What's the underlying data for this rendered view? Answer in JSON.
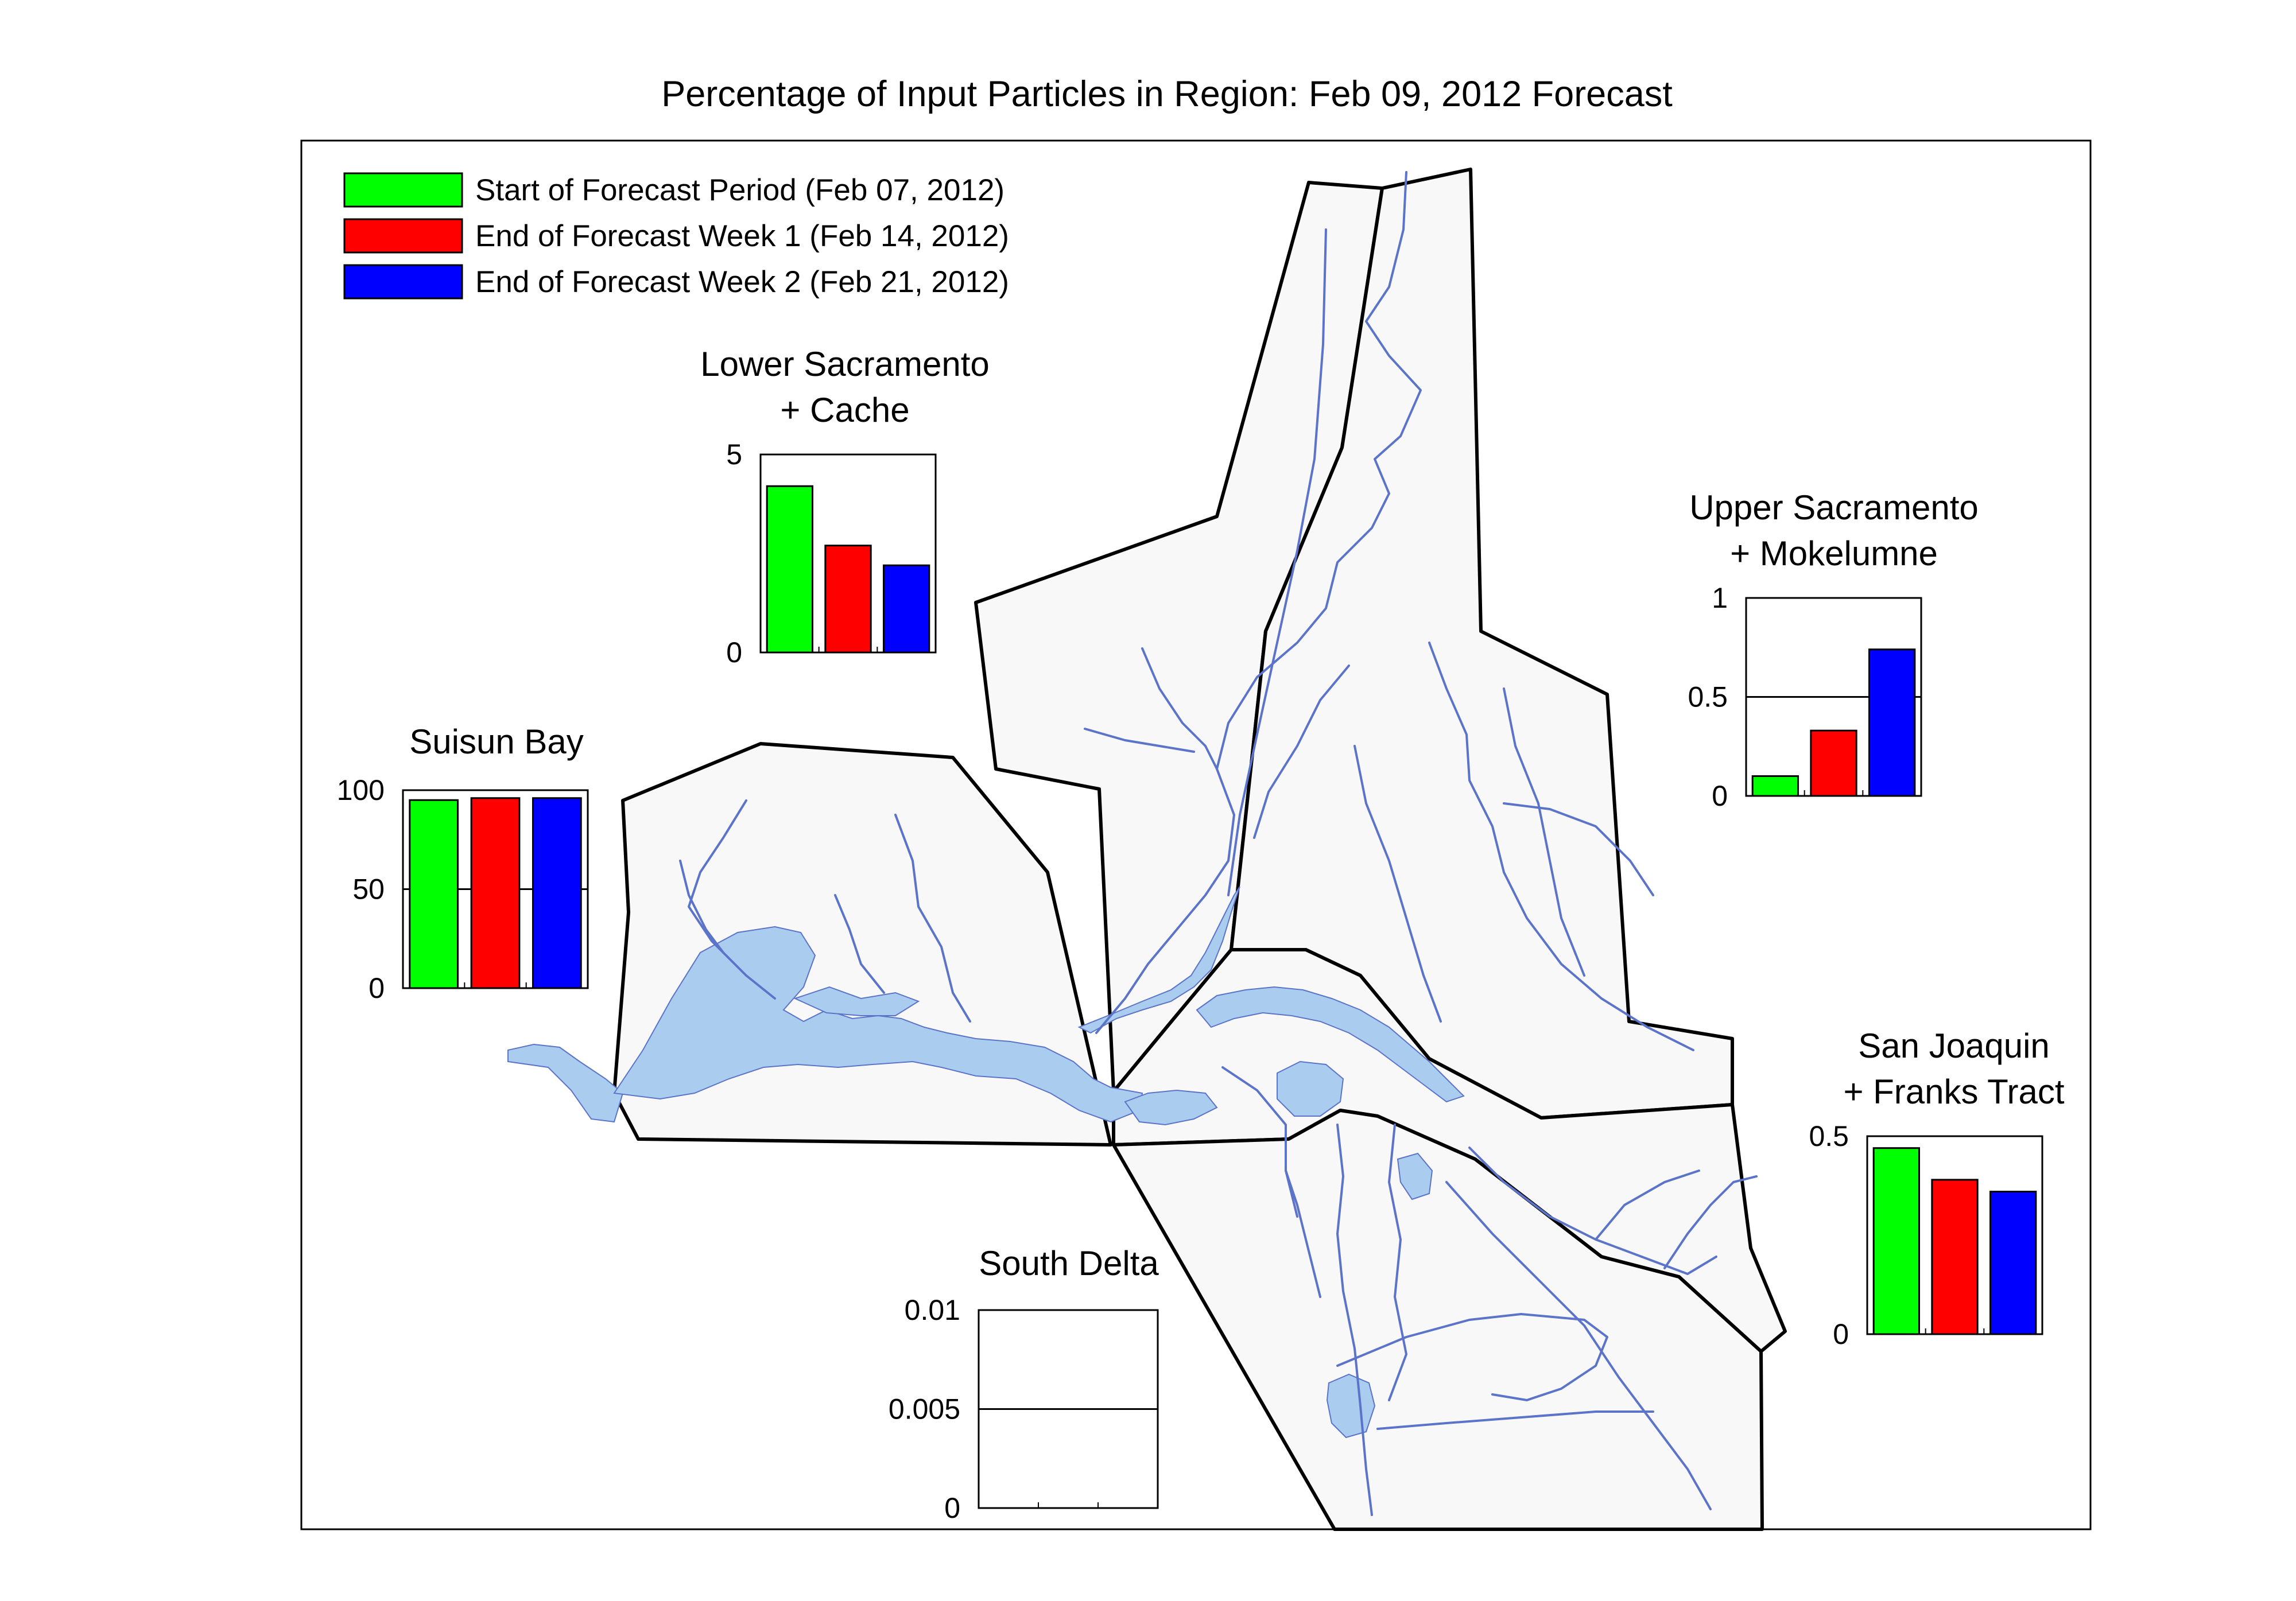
{
  "figure": {
    "title": "Percentage of Input Particles in Region: Feb 09, 2012 Forecast"
  },
  "legend": {
    "placement": "top-left",
    "entries": [
      {
        "label": "Start of Forecast Period (Feb 07, 2012)",
        "color": "#00ff00"
      },
      {
        "label": "End of Forecast Week 1 (Feb 14, 2012)",
        "color": "#ff0000"
      },
      {
        "label": "End of Forecast Week 2 (Feb 21, 2012)",
        "color": "#0000ff"
      }
    ]
  },
  "map": {
    "water_color": "#a9ccef",
    "channel_color": "#5b73c8",
    "region_fill": "#f8f8f8",
    "region_border_color": "#000000"
  },
  "chart_data": [
    {
      "type": "bar",
      "title_lines": [
        "Lower Sacramento",
        "+ Cache"
      ],
      "series_names": [
        "Start of Forecast Period (Feb 07, 2012)",
        "End of Forecast Week 1 (Feb 14, 2012)",
        "End of Forecast Week 2 (Feb 21, 2012)"
      ],
      "values": [
        4.2,
        2.7,
        2.2
      ],
      "ylim": [
        0,
        5
      ],
      "yticks": [
        "0",
        "5"
      ],
      "gridlines": []
    },
    {
      "type": "bar",
      "title_lines": [
        "Upper Sacramento",
        "+ Mokelumne"
      ],
      "series_names": [
        "Start of Forecast Period (Feb 07, 2012)",
        "End of Forecast Week 1 (Feb 14, 2012)",
        "End of Forecast Week 2 (Feb 21, 2012)"
      ],
      "values": [
        0.1,
        0.33,
        0.74
      ],
      "ylim": [
        0,
        1
      ],
      "yticks": [
        "0",
        "0.5",
        "1"
      ],
      "gridlines": [
        0.5
      ]
    },
    {
      "type": "bar",
      "title_lines": [
        "Suisun Bay"
      ],
      "series_names": [
        "Start of Forecast Period (Feb 07, 2012)",
        "End of Forecast Week 1 (Feb 14, 2012)",
        "End of Forecast Week 2 (Feb 21, 2012)"
      ],
      "values": [
        95,
        96,
        96
      ],
      "ylim": [
        0,
        100
      ],
      "yticks": [
        "0",
        "50",
        "100"
      ],
      "gridlines": [
        50
      ]
    },
    {
      "type": "bar",
      "title_lines": [
        "San Joaquin",
        "+ Franks Tract"
      ],
      "series_names": [
        "Start of Forecast Period (Feb 07, 2012)",
        "End of Forecast Week 1 (Feb 14, 2012)",
        "End of Forecast Week 2 (Feb 21, 2012)"
      ],
      "values": [
        0.47,
        0.39,
        0.36
      ],
      "ylim": [
        0,
        0.5
      ],
      "yticks": [
        "0",
        "0.5"
      ],
      "gridlines": []
    },
    {
      "type": "bar",
      "title_lines": [
        "South Delta"
      ],
      "series_names": [
        "Start of Forecast Period (Feb 07, 2012)",
        "End of Forecast Week 1 (Feb 14, 2012)",
        "End of Forecast Week 2 (Feb 21, 2012)"
      ],
      "values": [
        0,
        0,
        0
      ],
      "ylim": [
        0,
        0.01
      ],
      "yticks": [
        "0",
        "0.005",
        "0.01"
      ],
      "gridlines": [
        0.005
      ]
    }
  ]
}
